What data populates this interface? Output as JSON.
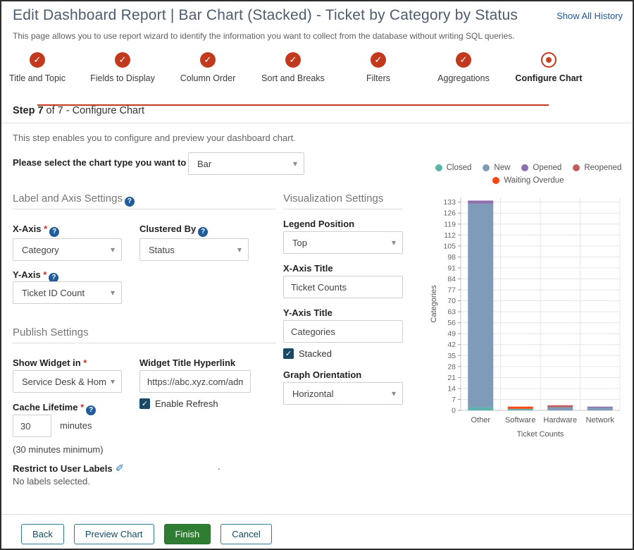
{
  "header": {
    "title": "Edit Dashboard Report | Bar Chart (Stacked) - Ticket by Category by Status",
    "history_link": "Show All History",
    "subtitle": "This page allows you to use report wizard to identify the information you want to collect from the database without writing SQL queries."
  },
  "stepper": {
    "steps": [
      {
        "label": "Title and Topic",
        "state": "done"
      },
      {
        "label": "Fields to Display",
        "state": "done"
      },
      {
        "label": "Column Order",
        "state": "done"
      },
      {
        "label": "Sort and Breaks",
        "state": "done"
      },
      {
        "label": "Filters",
        "state": "done"
      },
      {
        "label": "Aggregations",
        "state": "done"
      },
      {
        "label": "Configure Chart",
        "state": "current"
      }
    ]
  },
  "step_bar": {
    "step_bold": "Step 7",
    "rest": " of 7 - Configure Chart"
  },
  "intro": "This step enables you to configure and preview your dashboard chart.",
  "chart_type": {
    "label": "Please select the chart type you want to use",
    "value": "Bar"
  },
  "label_axis": {
    "heading": "Label and Axis Settings",
    "x_axis_label": "X-Axis",
    "x_axis_value": "Category",
    "clustered_label": "Clustered By",
    "clustered_value": "Status",
    "y_axis_label": "Y-Axis",
    "y_axis_value": "Ticket ID Count"
  },
  "visualization": {
    "heading": "Visualization Settings",
    "legend_position_label": "Legend Position",
    "legend_position_value": "Top",
    "x_title_label": "X-Axis Title",
    "x_title_value": "Ticket Counts",
    "y_title_label": "Y-Axis Title",
    "y_title_value": "Categories",
    "stacked_label": "Stacked",
    "stacked_checked": true,
    "orientation_label": "Graph Orientation",
    "orientation_value": "Horizontal"
  },
  "publish": {
    "heading": "Publish Settings",
    "show_widget_label": "Show Widget in",
    "show_widget_value": "Service Desk & Hom...",
    "hyperlink_label": "Widget Title Hyperlink",
    "hyperlink_value": "https://abc.xyz.com/admin",
    "enable_refresh_label": "Enable Refresh",
    "enable_refresh_checked": true,
    "cache_label": "Cache Lifetime",
    "cache_value": "30",
    "cache_unit": "minutes",
    "cache_note": "(30 minutes minimum)",
    "restrict_label": "Restrict to User Labels",
    "restrict_value": "No labels selected.",
    "stray_dot": "."
  },
  "footer": {
    "back": "Back",
    "preview": "Preview Chart",
    "finish": "Finish",
    "cancel": "Cancel"
  },
  "icons": {
    "caret": "▾",
    "check": "✓",
    "help": "?",
    "pencil": "✐"
  },
  "colors": {
    "accent_red": "#c23a1d",
    "link_blue": "#2257a0",
    "checkbox_navy": "#1b4965",
    "finish_green": "#2e7d32"
  },
  "chart_data": {
    "type": "bar",
    "stacked": true,
    "title": "",
    "xlabel": "Ticket Counts",
    "ylabel": "Categories",
    "categories": [
      "Other",
      "Software",
      "Hardware",
      "Network"
    ],
    "series": [
      {
        "name": "Closed",
        "color": "#5cb3ae",
        "values": [
          2,
          1,
          0,
          0
        ]
      },
      {
        "name": "New",
        "color": "#7e9cb9",
        "values": [
          130,
          0,
          2,
          1.6
        ]
      },
      {
        "name": "Opened",
        "color": "#8e6fae",
        "values": [
          2,
          0,
          0,
          0.8
        ]
      },
      {
        "name": "Reopened",
        "color": "#c0605e",
        "values": [
          0,
          0,
          1.3,
          0
        ]
      },
      {
        "name": "Waiting Overdue",
        "color": "#fc4612",
        "values": [
          0,
          1.4,
          0,
          0
        ]
      }
    ],
    "ylim": [
      0,
      133
    ],
    "ytick_step": 7,
    "grid": true,
    "legend_position": "top"
  }
}
